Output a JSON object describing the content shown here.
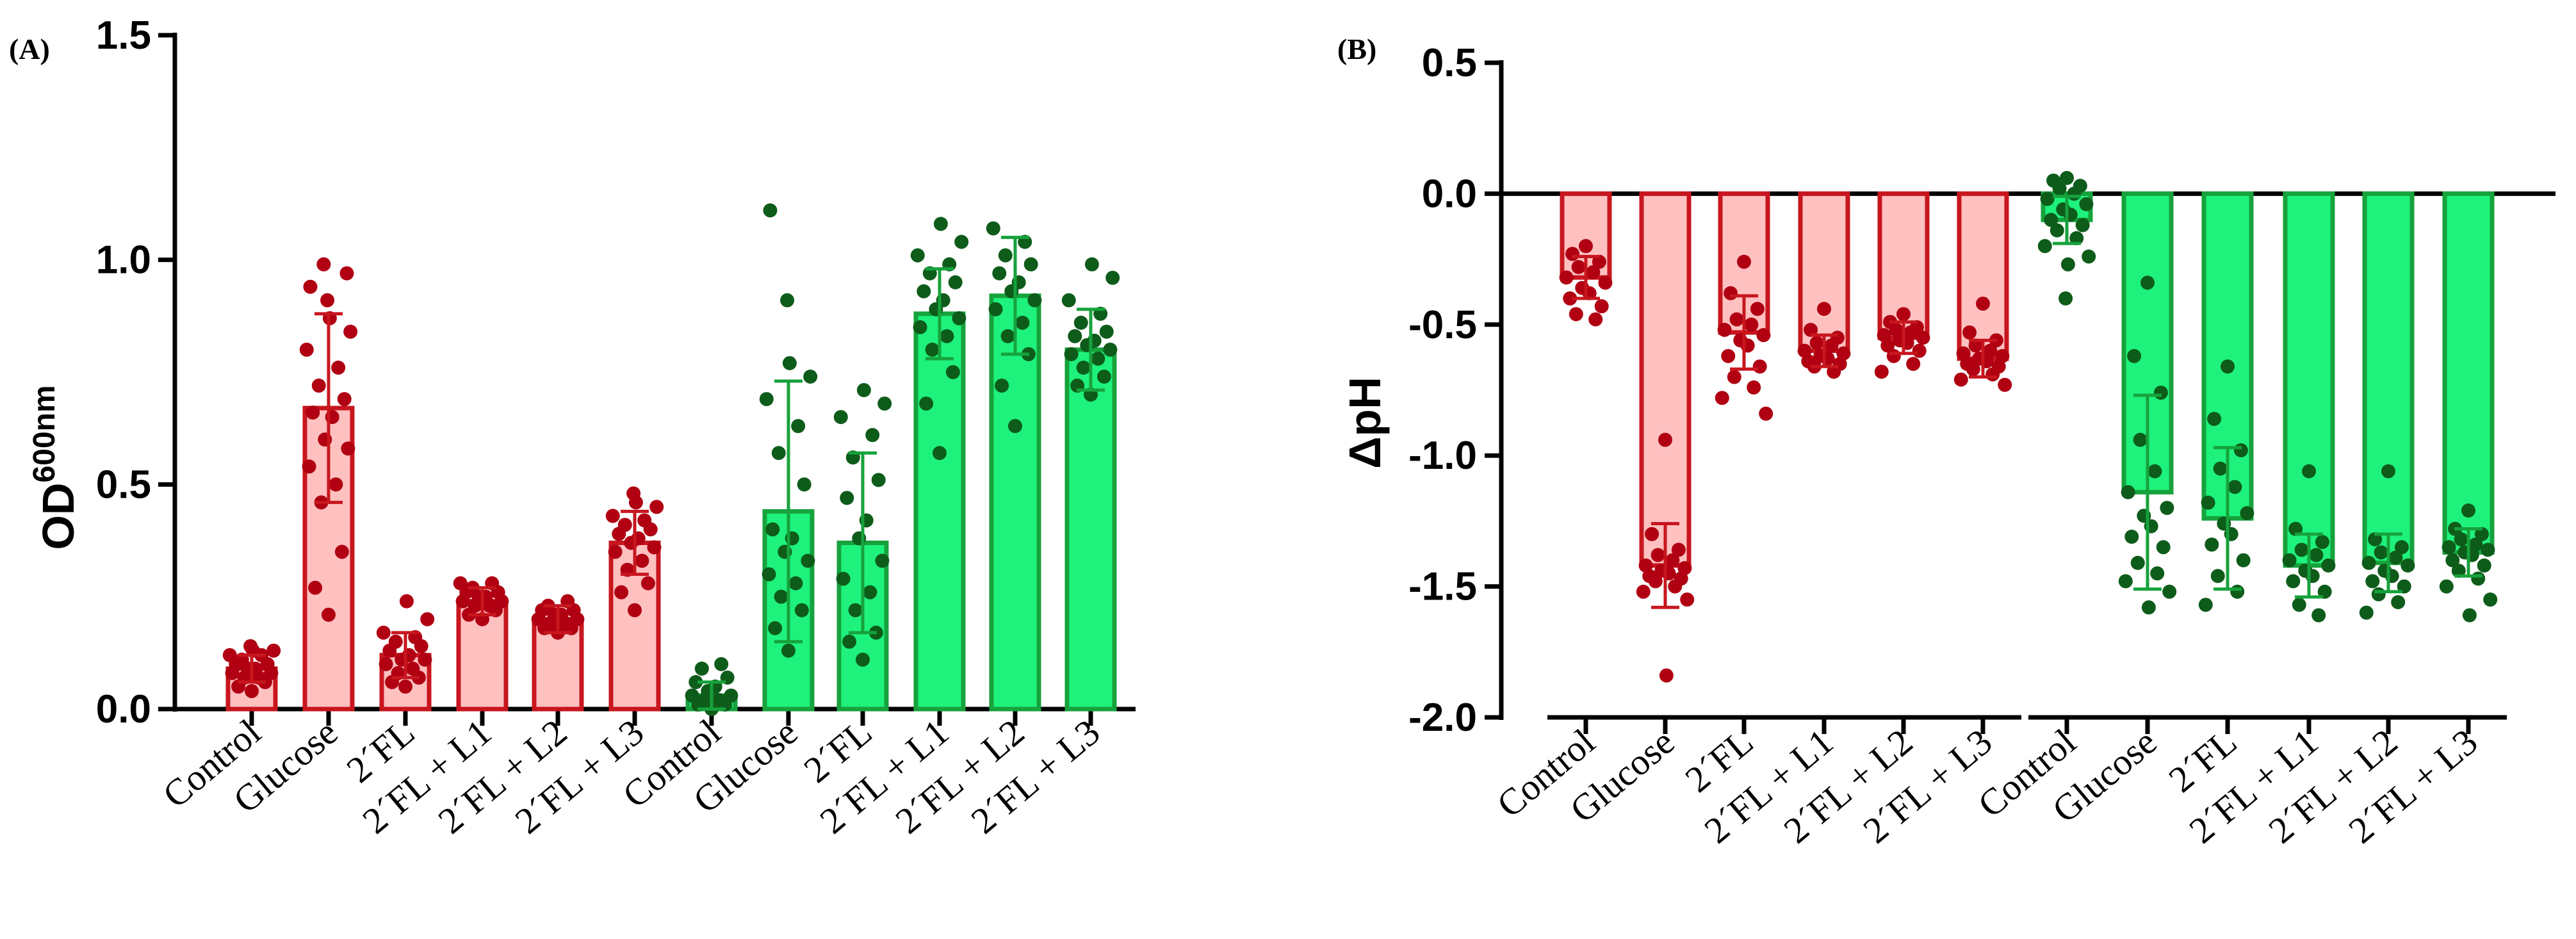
{
  "colors": {
    "red_bar_fill": "#ffc0c0",
    "red_bar_edge": "#c8161e",
    "red_points": "#b00012",
    "green_bar_fill": "#1ef27c",
    "green_bar_edge": "#17a23c",
    "green_points": "#0e5c1a"
  },
  "chart_data": [
    {
      "panel": "(A)",
      "type": "bar",
      "ylabel": "OD",
      "ylabel_superscript": "600nm",
      "ylim": [
        0,
        1.5
      ],
      "yticks": [
        0,
        0.5,
        1.0,
        1.5
      ],
      "ytick_labels": [
        "0.0",
        "0.5",
        "1.0",
        "1.5"
      ],
      "categories": [
        "Control",
        "Glucose",
        "2´FL",
        "2´FL + L1",
        "2´FL + L2",
        "2´FL + L3"
      ],
      "series": [
        {
          "name": "red",
          "values": [
            0.09,
            0.67,
            0.12,
            0.24,
            0.2,
            0.37
          ],
          "errors": [
            0.03,
            0.21,
            0.05,
            0.03,
            0.03,
            0.07
          ],
          "points": [
            [
              0.04,
              0.05,
              0.06,
              0.07,
              0.07,
              0.08,
              0.08,
              0.09,
              0.09,
              0.1,
              0.1,
              0.11,
              0.12,
              0.12,
              0.13,
              0.13,
              0.14
            ],
            [
              0.21,
              0.27,
              0.35,
              0.46,
              0.5,
              0.54,
              0.58,
              0.6,
              0.65,
              0.66,
              0.69,
              0.72,
              0.76,
              0.8,
              0.84,
              0.87,
              0.91,
              0.94,
              0.97,
              0.99
            ],
            [
              0.05,
              0.06,
              0.07,
              0.08,
              0.09,
              0.1,
              0.11,
              0.11,
              0.12,
              0.13,
              0.14,
              0.15,
              0.16,
              0.17,
              0.2,
              0.24
            ],
            [
              0.2,
              0.21,
              0.22,
              0.23,
              0.23,
              0.24,
              0.24,
              0.25,
              0.25,
              0.26,
              0.26,
              0.27,
              0.28,
              0.28
            ],
            [
              0.17,
              0.18,
              0.18,
              0.19,
              0.19,
              0.2,
              0.2,
              0.21,
              0.21,
              0.22,
              0.22,
              0.23,
              0.24
            ],
            [
              0.22,
              0.26,
              0.28,
              0.31,
              0.33,
              0.35,
              0.36,
              0.37,
              0.38,
              0.39,
              0.4,
              0.41,
              0.42,
              0.43,
              0.45,
              0.46,
              0.48
            ]
          ]
        },
        {
          "name": "green",
          "values": [
            0.03,
            0.44,
            0.37,
            0.88,
            0.92,
            0.8
          ],
          "errors": [
            0.03,
            0.29,
            0.2,
            0.1,
            0.13,
            0.09
          ],
          "points": [
            [
              0.0,
              0.01,
              0.01,
              0.02,
              0.02,
              0.03,
              0.03,
              0.04,
              0.05,
              0.06,
              0.07,
              0.09,
              0.1
            ],
            [
              0.13,
              0.18,
              0.22,
              0.25,
              0.28,
              0.3,
              0.33,
              0.35,
              0.38,
              0.4,
              0.5,
              0.57,
              0.63,
              0.69,
              0.74,
              0.77,
              0.91,
              1.11
            ],
            [
              0.11,
              0.15,
              0.17,
              0.22,
              0.26,
              0.29,
              0.33,
              0.38,
              0.42,
              0.47,
              0.51,
              0.56,
              0.61,
              0.65,
              0.68,
              0.71
            ],
            [
              0.57,
              0.68,
              0.75,
              0.8,
              0.83,
              0.85,
              0.87,
              0.89,
              0.91,
              0.93,
              0.95,
              0.97,
              0.99,
              1.01,
              1.04,
              1.08
            ],
            [
              0.63,
              0.72,
              0.79,
              0.83,
              0.86,
              0.89,
              0.91,
              0.93,
              0.95,
              0.97,
              0.99,
              1.01,
              1.04,
              1.07
            ],
            [
              0.7,
              0.72,
              0.74,
              0.76,
              0.78,
              0.79,
              0.8,
              0.81,
              0.82,
              0.83,
              0.84,
              0.86,
              0.88,
              0.91,
              0.96,
              0.99
            ]
          ]
        }
      ]
    },
    {
      "panel": "(B)",
      "type": "bar",
      "ylabel": "ΔpH",
      "ylim": [
        -2.0,
        0.5
      ],
      "yticks": [
        -2.0,
        -1.5,
        -1.0,
        -0.5,
        0.0,
        0.5
      ],
      "ytick_labels": [
        "-2.0",
        "-1.5",
        "-1.0",
        "-0.5",
        "0.0",
        "0.5"
      ],
      "categories": [
        "Control",
        "Glucose",
        "2´FL",
        "2´FL + L1",
        "2´FL + L2",
        "2´FL + L3"
      ],
      "series": [
        {
          "name": "red",
          "values": [
            -0.32,
            -1.42,
            -0.53,
            -0.6,
            -0.55,
            -0.63
          ],
          "errors": [
            0.08,
            0.16,
            0.14,
            0.06,
            0.06,
            0.07
          ],
          "points": [
            [
              -0.2,
              -0.23,
              -0.26,
              -0.28,
              -0.3,
              -0.32,
              -0.34,
              -0.36,
              -0.38,
              -0.4,
              -0.43,
              -0.46,
              -0.48
            ],
            [
              -0.94,
              -1.3,
              -1.36,
              -1.38,
              -1.4,
              -1.42,
              -1.43,
              -1.44,
              -1.45,
              -1.46,
              -1.47,
              -1.48,
              -1.5,
              -1.52,
              -1.55,
              -1.84
            ],
            [
              -0.26,
              -0.38,
              -0.44,
              -0.48,
              -0.5,
              -0.52,
              -0.54,
              -0.56,
              -0.58,
              -0.62,
              -0.66,
              -0.7,
              -0.74,
              -0.78,
              -0.84
            ],
            [
              -0.44,
              -0.52,
              -0.55,
              -0.57,
              -0.58,
              -0.6,
              -0.61,
              -0.62,
              -0.63,
              -0.64,
              -0.65,
              -0.66,
              -0.68
            ],
            [
              -0.46,
              -0.49,
              -0.51,
              -0.52,
              -0.53,
              -0.54,
              -0.55,
              -0.56,
              -0.57,
              -0.58,
              -0.6,
              -0.62,
              -0.65,
              -0.68
            ],
            [
              -0.42,
              -0.53,
              -0.56,
              -0.58,
              -0.6,
              -0.61,
              -0.62,
              -0.63,
              -0.64,
              -0.65,
              -0.66,
              -0.67,
              -0.69,
              -0.71,
              -0.73
            ]
          ]
        },
        {
          "name": "green",
          "values": [
            -0.1,
            -1.14,
            -1.24,
            -1.42,
            -1.41,
            -1.37
          ],
          "errors": [
            0.09,
            0.37,
            0.27,
            0.12,
            0.11,
            0.09
          ],
          "points": [
            [
              0.06,
              0.05,
              0.03,
              0.02,
              0.0,
              -0.02,
              -0.04,
              -0.06,
              -0.08,
              -0.1,
              -0.12,
              -0.14,
              -0.17,
              -0.2,
              -0.24,
              -0.27,
              -0.4
            ],
            [
              -0.34,
              -0.62,
              -0.76,
              -0.94,
              -1.06,
              -1.14,
              -1.2,
              -1.23,
              -1.27,
              -1.31,
              -1.35,
              -1.41,
              -1.45,
              -1.48,
              -1.52,
              -1.58
            ],
            [
              -0.66,
              -0.86,
              -0.98,
              -1.05,
              -1.12,
              -1.18,
              -1.22,
              -1.26,
              -1.3,
              -1.34,
              -1.4,
              -1.46,
              -1.52,
              -1.57
            ],
            [
              -1.06,
              -1.28,
              -1.33,
              -1.36,
              -1.38,
              -1.4,
              -1.42,
              -1.44,
              -1.46,
              -1.48,
              -1.52,
              -1.57,
              -1.61
            ],
            [
              -1.06,
              -1.32,
              -1.35,
              -1.37,
              -1.39,
              -1.41,
              -1.42,
              -1.44,
              -1.46,
              -1.48,
              -1.5,
              -1.53,
              -1.56,
              -1.6
            ],
            [
              -1.21,
              -1.28,
              -1.3,
              -1.32,
              -1.34,
              -1.35,
              -1.36,
              -1.37,
              -1.38,
              -1.4,
              -1.42,
              -1.44,
              -1.47,
              -1.5,
              -1.55,
              -1.61
            ]
          ]
        }
      ]
    }
  ]
}
